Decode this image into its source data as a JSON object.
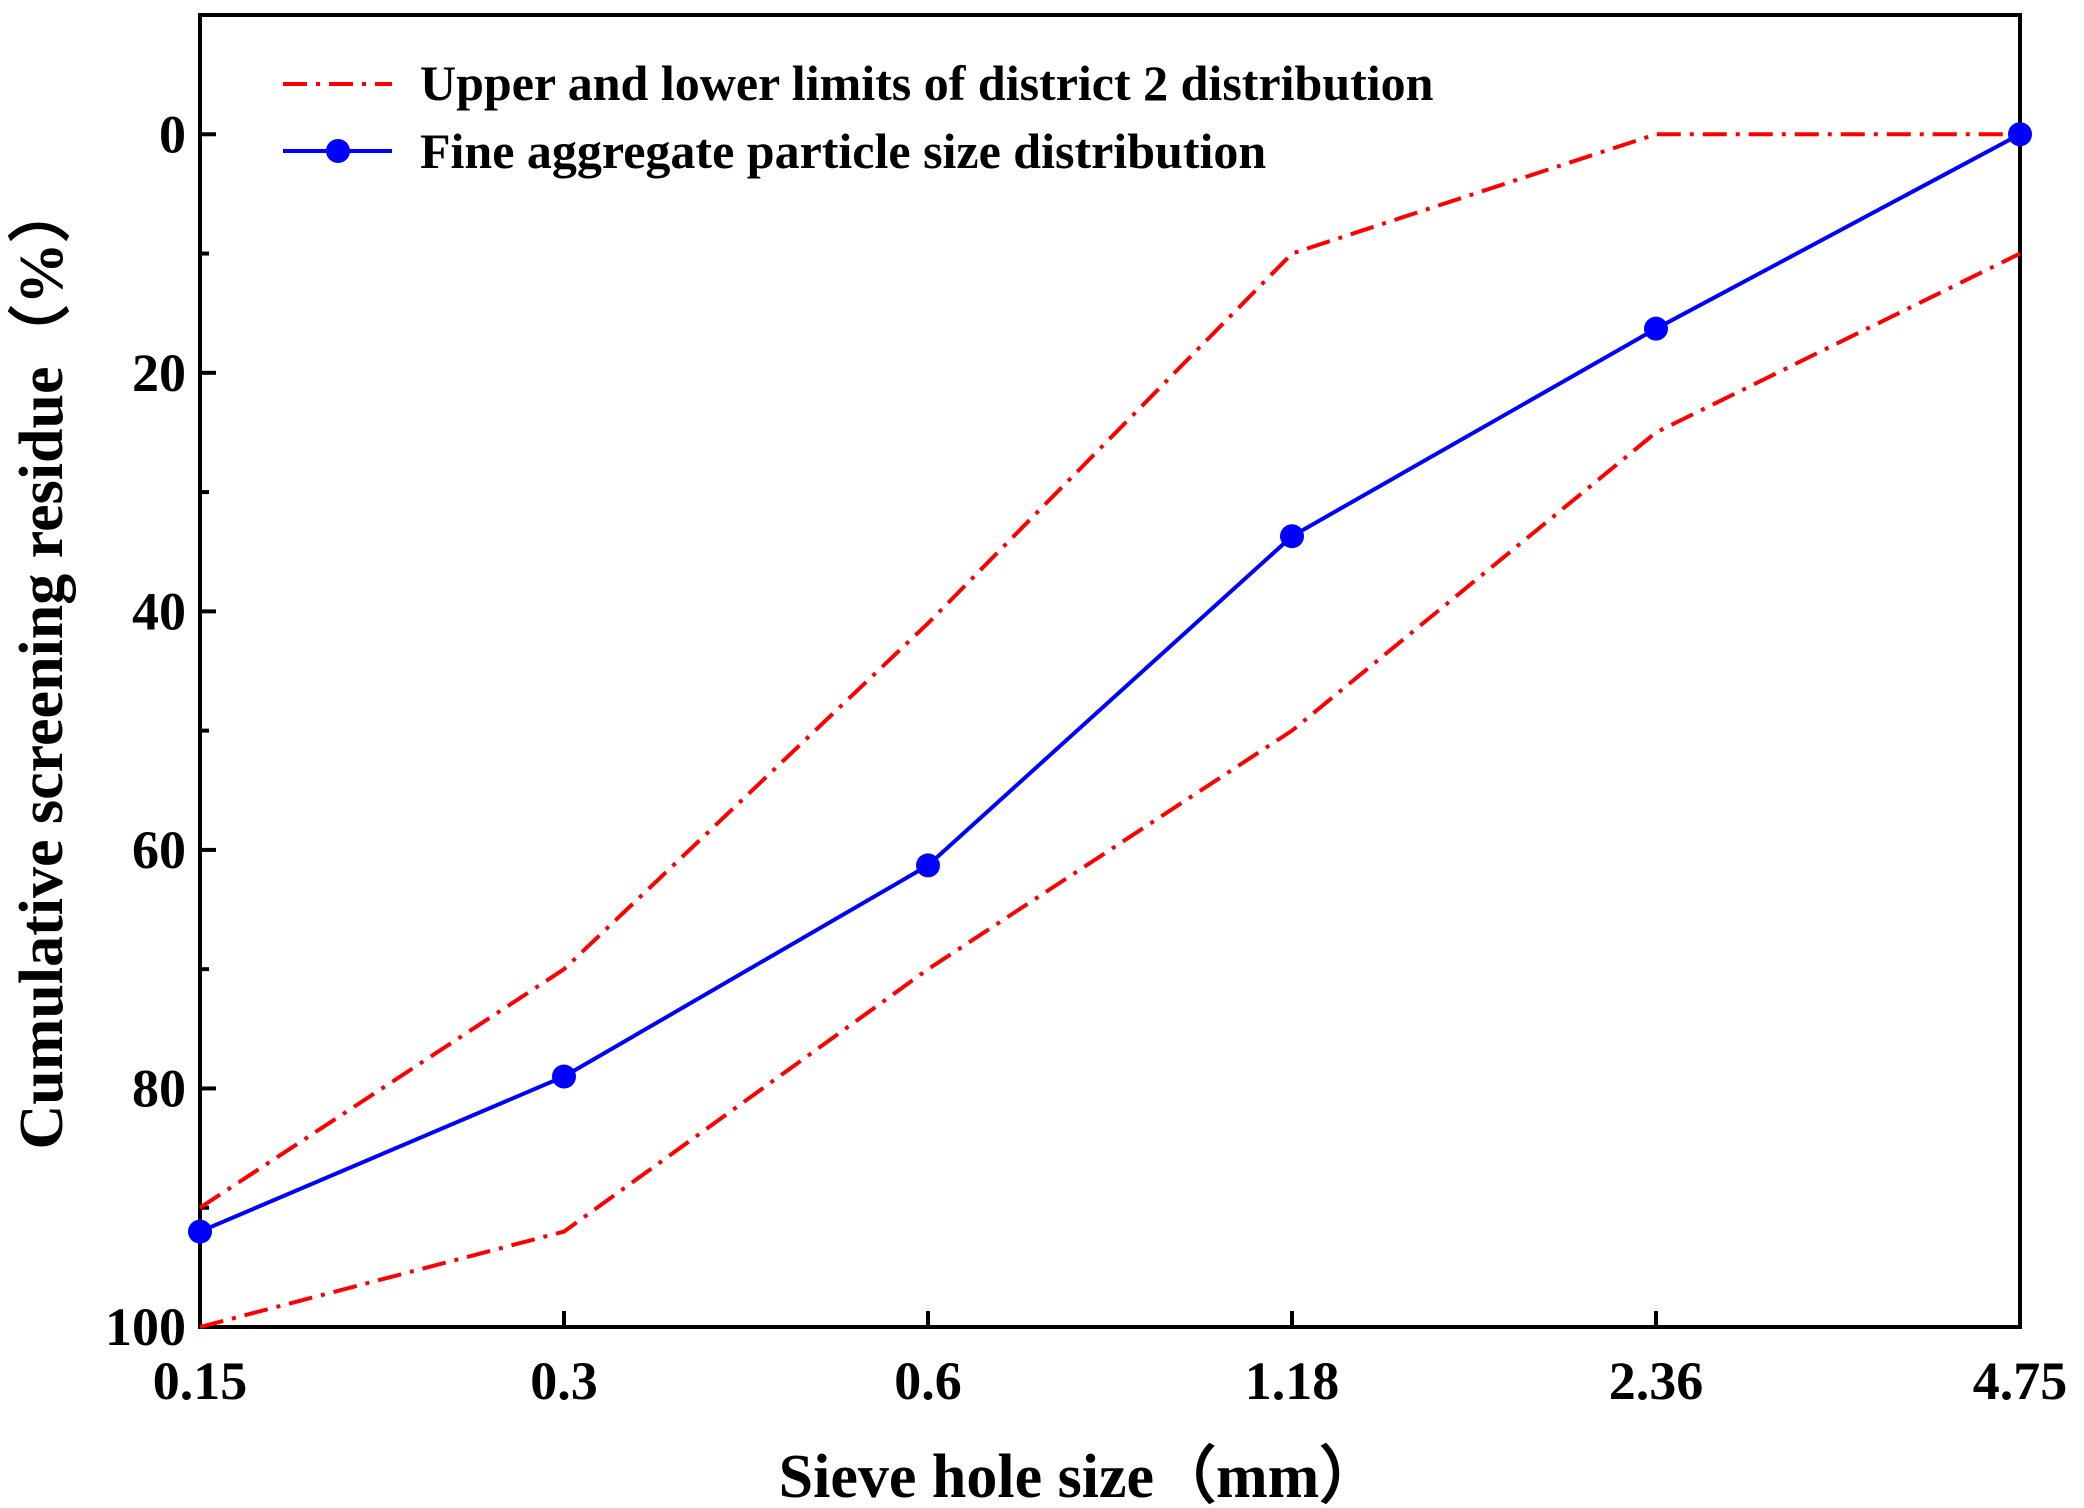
{
  "chart_data": {
    "type": "line",
    "title": "",
    "xlabel": "Sieve hole size（mm）",
    "ylabel": "Cumulative screening residue（%）",
    "categories": [
      "0.15",
      "0.3",
      "0.6",
      "1.18",
      "2.36",
      "4.75"
    ],
    "y_axis": {
      "inverted": true,
      "ylim": [
        -10,
        100
      ],
      "major_ticks": [
        0,
        20,
        40,
        60,
        80,
        100
      ],
      "tick_labels": [
        "0",
        "20",
        "40",
        "60",
        "80",
        "100"
      ],
      "minor_ticks": [
        10,
        30,
        50,
        70,
        90
      ]
    },
    "series": [
      {
        "name": "Upper and lower limits of district 2 distribution",
        "role": "upper-limit",
        "style": "dash-dot",
        "color": "#ff0000",
        "values": [
          90,
          70,
          41,
          10,
          0,
          0
        ]
      },
      {
        "name": "Upper and lower limits of district 2 distribution",
        "role": "lower-limit",
        "style": "dash-dot",
        "color": "#ff0000",
        "values": [
          100,
          92,
          70,
          50,
          25,
          10
        ]
      },
      {
        "name": "Fine aggregate particle size distribution",
        "role": "measured",
        "style": "solid-with-circles",
        "color": "#0000ff",
        "values": [
          92,
          79,
          61.3,
          33.7,
          16.3,
          0
        ]
      }
    ],
    "legend": {
      "position": "top-left",
      "entries": [
        {
          "label": "Upper and lower limits of district 2 distribution",
          "color": "#ff0000",
          "style": "dash-dot"
        },
        {
          "label": "Fine aggregate particle size distribution",
          "color": "#0000ff",
          "style": "solid-with-circles"
        }
      ]
    },
    "grid": false
  }
}
